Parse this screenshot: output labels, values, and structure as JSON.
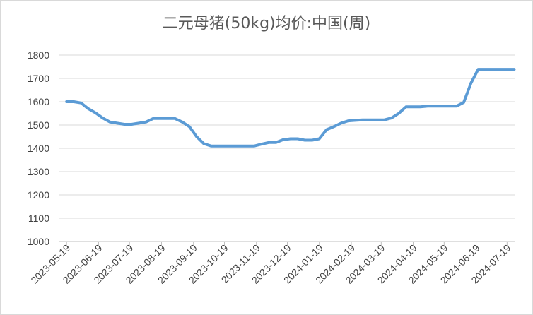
{
  "chart_data": {
    "type": "line",
    "title": "二元母猪(50kg)均价:中国(周)",
    "ylim": [
      1000,
      1800
    ],
    "yticks": [
      1000,
      1100,
      1200,
      1300,
      1400,
      1500,
      1600,
      1700,
      1800
    ],
    "x_tick_labels": [
      "2023-05-19",
      "2023-06-19",
      "2023-07-19",
      "2023-08-19",
      "2023-09-19",
      "2023-10-19",
      "2023-11-19",
      "2023-12-19",
      "2024-01-19",
      "2024-02-19",
      "2024-03-19",
      "2024-04-19",
      "2024-05-19",
      "2024-06-19",
      "2024-07-19"
    ],
    "grid": "horizontal",
    "legend": "none",
    "series": [
      {
        "color": "#5b9bd5",
        "x": [
          "2023-05-19",
          "2023-05-26",
          "2023-06-02",
          "2023-06-09",
          "2023-06-16",
          "2023-06-23",
          "2023-06-30",
          "2023-07-07",
          "2023-07-14",
          "2023-07-21",
          "2023-07-28",
          "2023-08-04",
          "2023-08-11",
          "2023-08-18",
          "2023-08-25",
          "2023-09-01",
          "2023-09-08",
          "2023-09-15",
          "2023-09-22",
          "2023-09-29",
          "2023-10-06",
          "2023-10-13",
          "2023-10-20",
          "2023-10-27",
          "2023-11-03",
          "2023-11-10",
          "2023-11-17",
          "2023-11-24",
          "2023-12-01",
          "2023-12-08",
          "2023-12-15",
          "2023-12-22",
          "2023-12-29",
          "2024-01-05",
          "2024-01-12",
          "2024-01-19",
          "2024-01-26",
          "2024-02-02",
          "2024-02-09",
          "2024-02-16",
          "2024-02-23",
          "2024-03-01",
          "2024-03-08",
          "2024-03-15",
          "2024-03-22",
          "2024-03-29",
          "2024-04-05",
          "2024-04-12",
          "2024-04-19",
          "2024-04-26",
          "2024-05-03",
          "2024-05-10",
          "2024-05-17",
          "2024-05-24",
          "2024-05-31",
          "2024-06-07",
          "2024-06-14",
          "2024-06-21",
          "2024-06-28",
          "2024-07-05",
          "2024-07-12",
          "2024-07-19",
          "2024-07-26"
        ],
        "values": [
          1600,
          1600,
          1595,
          1570,
          1552,
          1530,
          1513,
          1508,
          1503,
          1503,
          1508,
          1513,
          1528,
          1528,
          1528,
          1528,
          1513,
          1493,
          1450,
          1420,
          1410,
          1410,
          1410,
          1410,
          1410,
          1410,
          1410,
          1418,
          1425,
          1425,
          1437,
          1441,
          1441,
          1435,
          1435,
          1441,
          1480,
          1493,
          1508,
          1518,
          1520,
          1522,
          1522,
          1522,
          1522,
          1530,
          1550,
          1578,
          1578,
          1578,
          1581,
          1581,
          1581,
          1581,
          1581,
          1597,
          1680,
          1739,
          1739,
          1739,
          1739,
          1739,
          1739
        ]
      }
    ]
  }
}
